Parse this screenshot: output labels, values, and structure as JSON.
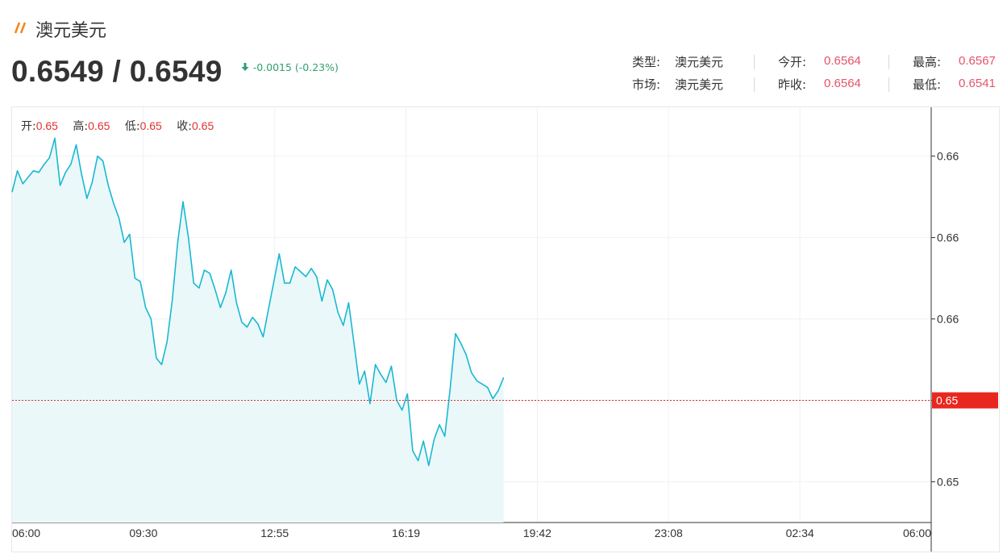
{
  "header": {
    "logo_icon": "double-slash-icon",
    "title": "澳元美元",
    "price": "0.6549 / 0.6549",
    "change": "-0.0015 (-0.23%)",
    "change_icon": "arrow-down-icon"
  },
  "stats": {
    "type_label": "类型:",
    "type_value": "澳元美元",
    "market_label": "市场:",
    "market_value": "澳元美元",
    "open_label": "今开:",
    "open_value": "0.6564",
    "prev_close_label": "昨收:",
    "prev_close_value": "0.6564",
    "high_label": "最高:",
    "high_value": "0.6567",
    "low_label": "最低:",
    "low_value": "0.6541"
  },
  "ohlc": {
    "open_label": "开:",
    "open_value": "0.65",
    "high_label": "高:",
    "high_value": "0.65",
    "low_label": "低:",
    "low_value": "0.65",
    "close_label": "收:",
    "close_value": "0.65"
  },
  "colors": {
    "line": "#1ab8d2",
    "area": "#eaf8fa",
    "current_price": "#e8281e",
    "up": "#e5536b",
    "down": "#2e9f6f"
  },
  "chart_data": {
    "type": "area",
    "title": "",
    "xlabel": "",
    "ylabel": "",
    "x_ticks": [
      "06:00",
      "09:30",
      "12:55",
      "16:19",
      "19:42",
      "23:08",
      "02:34",
      "06:00"
    ],
    "y_ticks": [
      "0.66",
      "0.66",
      "0.66",
      "0.65",
      "0.65"
    ],
    "y_tick_values": [
      0.6564,
      0.6559,
      0.6554,
      0.6549,
      0.6544
    ],
    "ylim": [
      0.65415,
      0.6567
    ],
    "current_price": 0.6549,
    "current_price_label": "0.65",
    "grid": true,
    "series": [
      {
        "x_start": "06:00",
        "x_end": "18:50",
        "values": [
          0.65618,
          0.65631,
          0.65623,
          0.65627,
          0.65631,
          0.6563,
          0.65635,
          0.65639,
          0.65651,
          0.65622,
          0.6563,
          0.65635,
          0.65647,
          0.65629,
          0.65614,
          0.65624,
          0.6564,
          0.65637,
          0.65622,
          0.65611,
          0.65602,
          0.65587,
          0.65592,
          0.65565,
          0.65563,
          0.65547,
          0.6554,
          0.65516,
          0.65512,
          0.65526,
          0.65552,
          0.65587,
          0.65612,
          0.6559,
          0.65562,
          0.65559,
          0.6557,
          0.65568,
          0.65558,
          0.65547,
          0.65556,
          0.6557,
          0.6555,
          0.65538,
          0.65535,
          0.65541,
          0.65537,
          0.65529,
          0.65546,
          0.65563,
          0.6558,
          0.65562,
          0.65562,
          0.65572,
          0.65569,
          0.65566,
          0.65571,
          0.65566,
          0.65551,
          0.65564,
          0.65558,
          0.65544,
          0.65536,
          0.6555,
          0.65525,
          0.655,
          0.65508,
          0.65488,
          0.65512,
          0.65506,
          0.65501,
          0.65511,
          0.6549,
          0.65484,
          0.65494,
          0.65459,
          0.65453,
          0.65465,
          0.6545,
          0.65466,
          0.65475,
          0.65468,
          0.65497,
          0.65531,
          0.65525,
          0.65518,
          0.65507,
          0.65502,
          0.655,
          0.65498,
          0.65491,
          0.65496,
          0.65504
        ]
      }
    ]
  }
}
